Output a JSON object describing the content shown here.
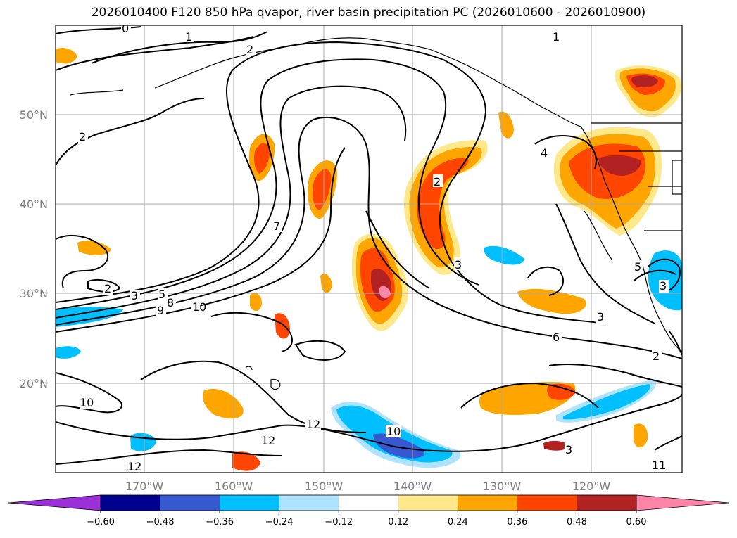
{
  "title": "2026010400 F120 850 hPa qvapor, river basin precipitation PC (2026010600 - 2026010900)",
  "latitude_labels": [
    "50°N",
    "40°N",
    "30°N",
    "20°N"
  ],
  "longitude_labels": [
    "170°W",
    "160°W",
    "150°W",
    "140°W",
    "130°W",
    "120°W"
  ],
  "contour_labels": [
    "0",
    "1",
    "1",
    "2",
    "2",
    "2",
    "2",
    "3",
    "3",
    "3",
    "4",
    "5",
    "6",
    "7",
    "8",
    "9",
    "10",
    "10",
    "10",
    "11",
    "12",
    "12",
    "12",
    "3",
    "5",
    "3",
    "2"
  ],
  "colorbar": {
    "tick_labels": [
      "−0.60",
      "−0.48",
      "−0.36",
      "−0.24",
      "−0.12",
      "0.12",
      "0.24",
      "0.36",
      "0.48",
      "0.60"
    ],
    "colors": [
      "#9b30d8",
      "#000090",
      "#3658d0",
      "#00bfff",
      "#aee3ff",
      "#ffffff",
      "#ffe88a",
      "#ffa500",
      "#ff4500",
      "#b22222",
      "#ff85a8"
    ]
  },
  "colors": {
    "yellow": "#ffe88a",
    "orange": "#ffa500",
    "red": "#ff4500",
    "darkred": "#b22222",
    "pink": "#ff85a8",
    "lightblue": "#aee3ff",
    "blue": "#00bfff",
    "midblue": "#3658d0",
    "navy": "#000090"
  }
}
